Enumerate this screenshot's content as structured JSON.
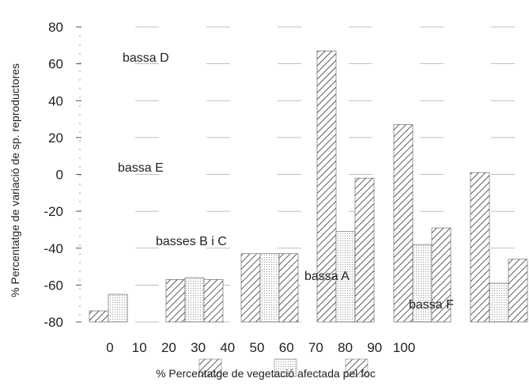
{
  "chart_data": {
    "type": "bar",
    "xlabel": "% Percentatge de vegetació afectada pel foc",
    "ylabel": "% Percentatge de variació de sp. reproductores",
    "ylim": [
      -80,
      80
    ],
    "y_ticks": [
      80,
      60,
      40,
      20,
      0,
      -20,
      -40,
      -60,
      -80
    ],
    "x_ticks": [
      "0",
      "10",
      "20",
      "30",
      "40",
      "50",
      "60",
      "70",
      "80",
      "90",
      "100"
    ],
    "grid": false,
    "legend": "none (pattern swatches under x-axis label)",
    "pattern_style": {
      "diag-hatch": "#333333",
      "dots": "#9a9a9a"
    },
    "groups": [
      {
        "annotation": "",
        "values": [
          -74,
          -65,
          -80
        ]
      },
      {
        "annotation": "",
        "values": [
          -57,
          -56,
          -57
        ]
      },
      {
        "annotation": "",
        "values": [
          -43,
          -43,
          -43
        ]
      },
      {
        "annotation": "",
        "values": [
          67,
          -31,
          -2
        ]
      },
      {
        "annotation": "",
        "values": [
          27,
          -38,
          -29
        ]
      },
      {
        "annotation": "",
        "values": [
          1,
          -59,
          -46
        ]
      }
    ],
    "annotations": [
      "bassa D",
      "bassa E",
      "basses B i C",
      "bassa A",
      "bassa F"
    ]
  }
}
